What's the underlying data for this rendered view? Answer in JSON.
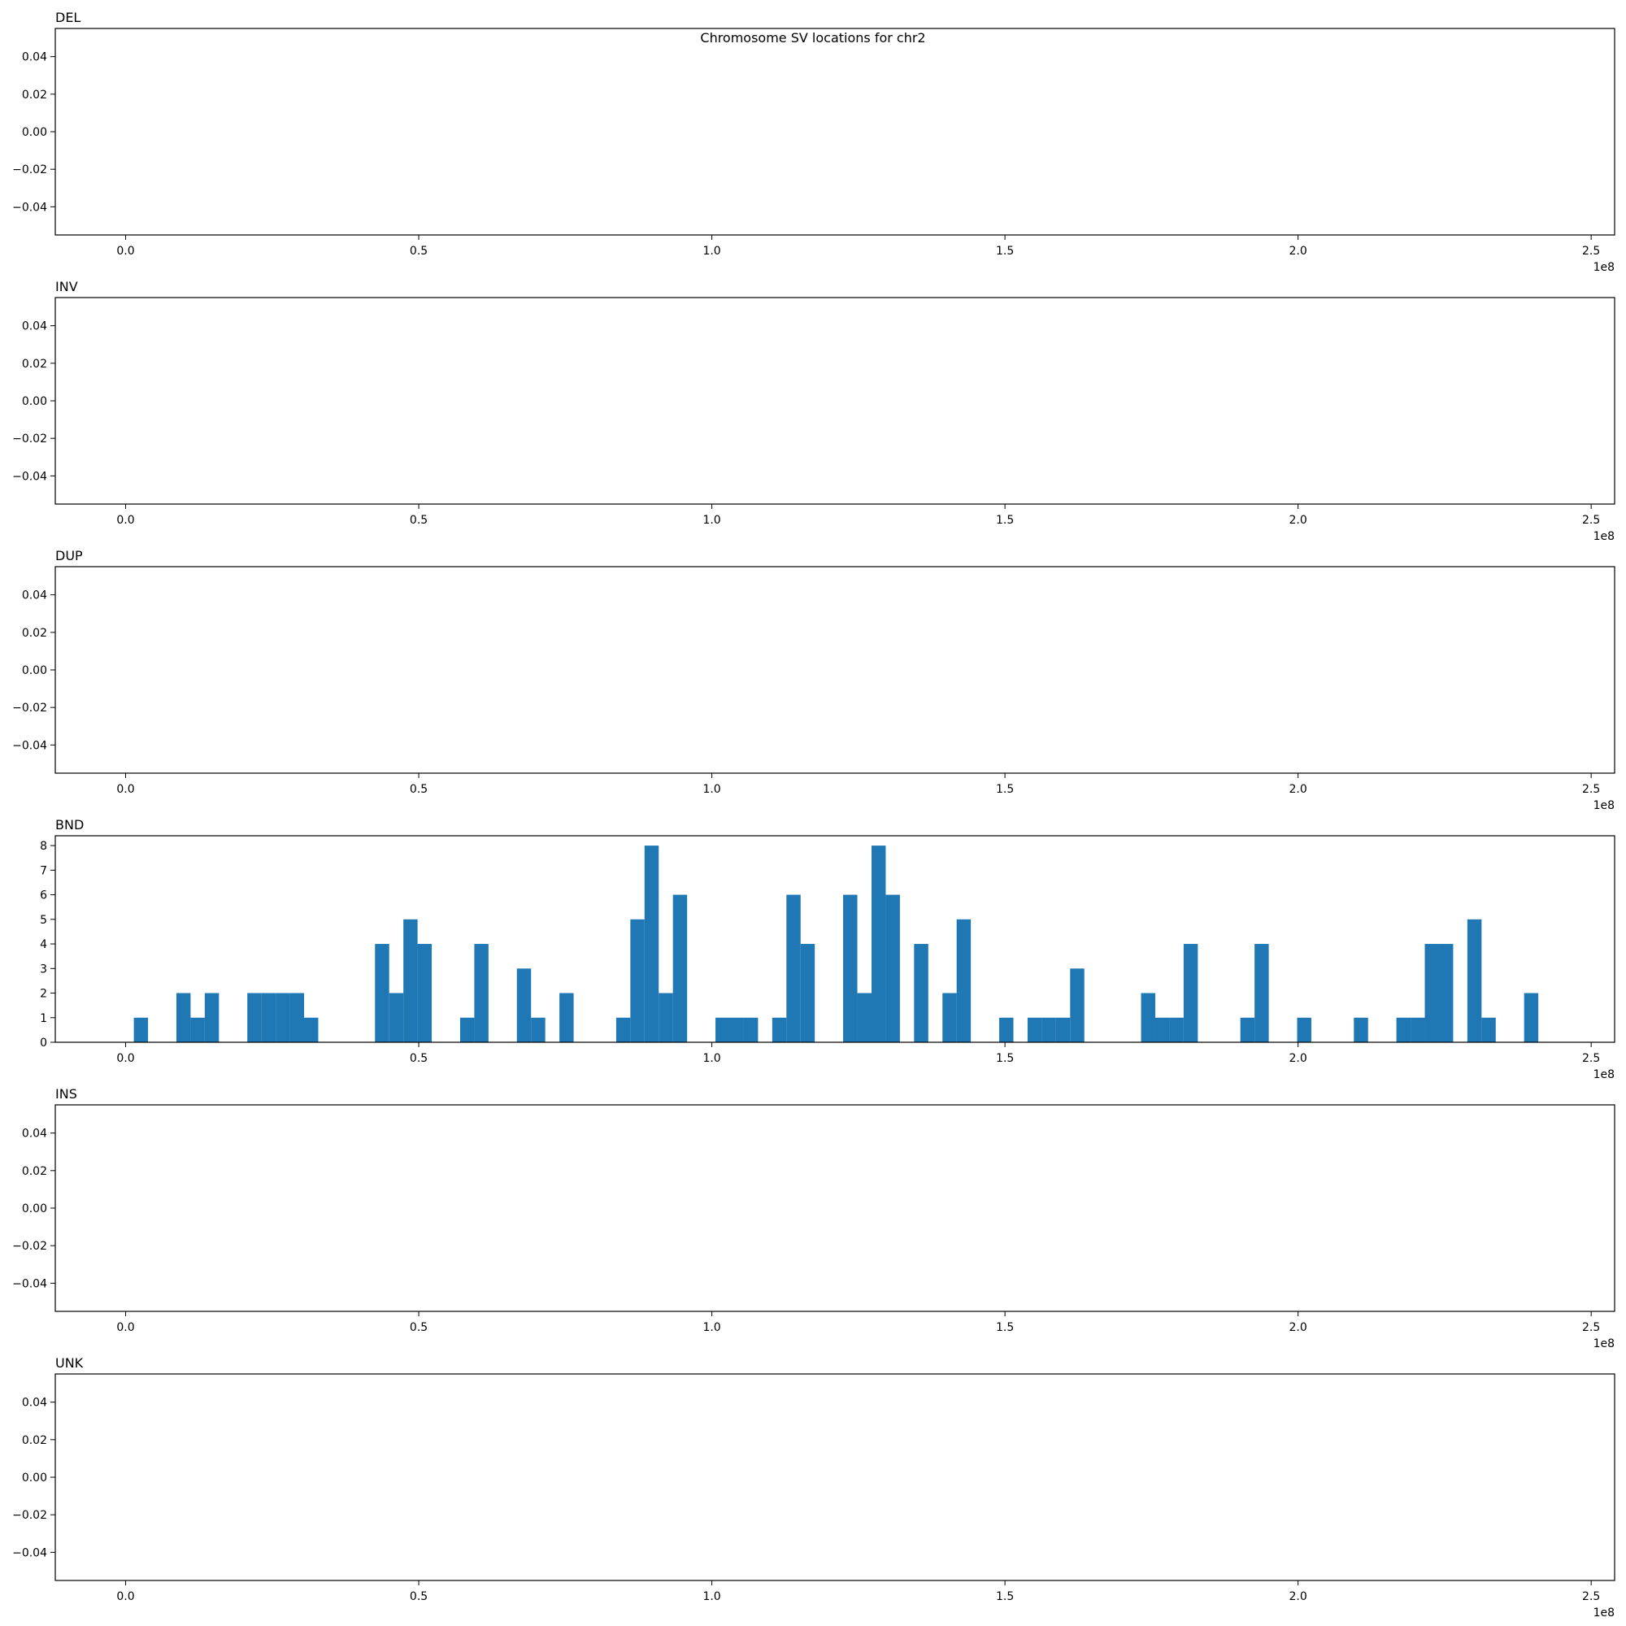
{
  "chart_data": {
    "type": "bar",
    "suptitle": "Chromosome SV locations for chr2",
    "x_offset_label": "1e8",
    "x_ticks": [
      0.0,
      0.5,
      1.0,
      1.5,
      2.0,
      2.5
    ],
    "x_tick_labels": [
      "0.0",
      "0.5",
      "1.0",
      "1.5",
      "2.0",
      "2.5"
    ],
    "xlim": [
      -0.12,
      2.54
    ],
    "x_unit_multiplier": "1e8",
    "bar_color": "#1f77b4",
    "bin_width": 0.0242,
    "panels": [
      {
        "title": "DEL",
        "ylim": [
          -0.055,
          0.055
        ],
        "y_ticks": [
          0.04,
          0.02,
          0.0,
          -0.02,
          -0.04
        ],
        "y_tick_labels": [
          "0.04",
          "0.02",
          "0.00",
          "−0.02",
          "−0.04"
        ],
        "bars": []
      },
      {
        "title": "INV",
        "ylim": [
          -0.055,
          0.055
        ],
        "y_ticks": [
          0.04,
          0.02,
          0.0,
          -0.02,
          -0.04
        ],
        "y_tick_labels": [
          "0.04",
          "0.02",
          "0.00",
          "−0.02",
          "−0.04"
        ],
        "bars": []
      },
      {
        "title": "DUP",
        "ylim": [
          -0.055,
          0.055
        ],
        "y_ticks": [
          0.04,
          0.02,
          0.0,
          -0.02,
          -0.04
        ],
        "y_tick_labels": [
          "0.04",
          "0.02",
          "0.00",
          "−0.02",
          "−0.04"
        ],
        "bars": []
      },
      {
        "title": "BND",
        "ylim": [
          0,
          8.4
        ],
        "y_ticks": [
          0,
          1,
          2,
          3,
          4,
          5,
          6,
          7,
          8
        ],
        "y_tick_labels": [
          "0",
          "1",
          "2",
          "3",
          "4",
          "5",
          "6",
          "7",
          "8"
        ],
        "bars": [
          {
            "x": 0.0261,
            "count": 1
          },
          {
            "x": 0.0987,
            "count": 2
          },
          {
            "x": 0.1229,
            "count": 1
          },
          {
            "x": 0.1471,
            "count": 2
          },
          {
            "x": 0.2197,
            "count": 2
          },
          {
            "x": 0.2439,
            "count": 2
          },
          {
            "x": 0.2681,
            "count": 2
          },
          {
            "x": 0.2923,
            "count": 2
          },
          {
            "x": 0.3165,
            "count": 1
          },
          {
            "x": 0.4375,
            "count": 4
          },
          {
            "x": 0.4617,
            "count": 2
          },
          {
            "x": 0.4859,
            "count": 5
          },
          {
            "x": 0.5101,
            "count": 4
          },
          {
            "x": 0.5827,
            "count": 1
          },
          {
            "x": 0.6069,
            "count": 4
          },
          {
            "x": 0.6795,
            "count": 3
          },
          {
            "x": 0.7037,
            "count": 1
          },
          {
            "x": 0.7521,
            "count": 2
          },
          {
            "x": 0.8489,
            "count": 1
          },
          {
            "x": 0.8731,
            "count": 5
          },
          {
            "x": 0.8973,
            "count": 8
          },
          {
            "x": 0.9215,
            "count": 2
          },
          {
            "x": 0.9457,
            "count": 6
          },
          {
            "x": 1.0183,
            "count": 1
          },
          {
            "x": 1.0425,
            "count": 1
          },
          {
            "x": 1.0667,
            "count": 1
          },
          {
            "x": 1.1151,
            "count": 1
          },
          {
            "x": 1.1393,
            "count": 6
          },
          {
            "x": 1.1635,
            "count": 4
          },
          {
            "x": 1.2361,
            "count": 6
          },
          {
            "x": 1.2603,
            "count": 2
          },
          {
            "x": 1.2845,
            "count": 8
          },
          {
            "x": 1.3087,
            "count": 6
          },
          {
            "x": 1.3571,
            "count": 4
          },
          {
            "x": 1.4055,
            "count": 2
          },
          {
            "x": 1.4297,
            "count": 5
          },
          {
            "x": 1.5023,
            "count": 1
          },
          {
            "x": 1.5507,
            "count": 1
          },
          {
            "x": 1.5749,
            "count": 1
          },
          {
            "x": 1.5991,
            "count": 1
          },
          {
            "x": 1.6233,
            "count": 3
          },
          {
            "x": 1.7443,
            "count": 2
          },
          {
            "x": 1.7685,
            "count": 1
          },
          {
            "x": 1.7927,
            "count": 1
          },
          {
            "x": 1.8169,
            "count": 4
          },
          {
            "x": 1.9137,
            "count": 1
          },
          {
            "x": 1.9379,
            "count": 4
          },
          {
            "x": 2.0105,
            "count": 1
          },
          {
            "x": 2.1073,
            "count": 1
          },
          {
            "x": 2.1799,
            "count": 1
          },
          {
            "x": 2.2041,
            "count": 1
          },
          {
            "x": 2.2283,
            "count": 4
          },
          {
            "x": 2.2525,
            "count": 4
          },
          {
            "x": 2.3009,
            "count": 5
          },
          {
            "x": 2.3251,
            "count": 1
          },
          {
            "x": 2.3977,
            "count": 2
          }
        ]
      },
      {
        "title": "INS",
        "ylim": [
          -0.055,
          0.055
        ],
        "y_ticks": [
          0.04,
          0.02,
          0.0,
          -0.02,
          -0.04
        ],
        "y_tick_labels": [
          "0.04",
          "0.02",
          "0.00",
          "−0.02",
          "−0.04"
        ],
        "bars": []
      },
      {
        "title": "UNK",
        "ylim": [
          -0.055,
          0.055
        ],
        "y_ticks": [
          0.04,
          0.02,
          0.0,
          -0.02,
          -0.04
        ],
        "y_tick_labels": [
          "0.04",
          "0.02",
          "0.00",
          "−0.02",
          "−0.04"
        ],
        "bars": []
      }
    ]
  }
}
